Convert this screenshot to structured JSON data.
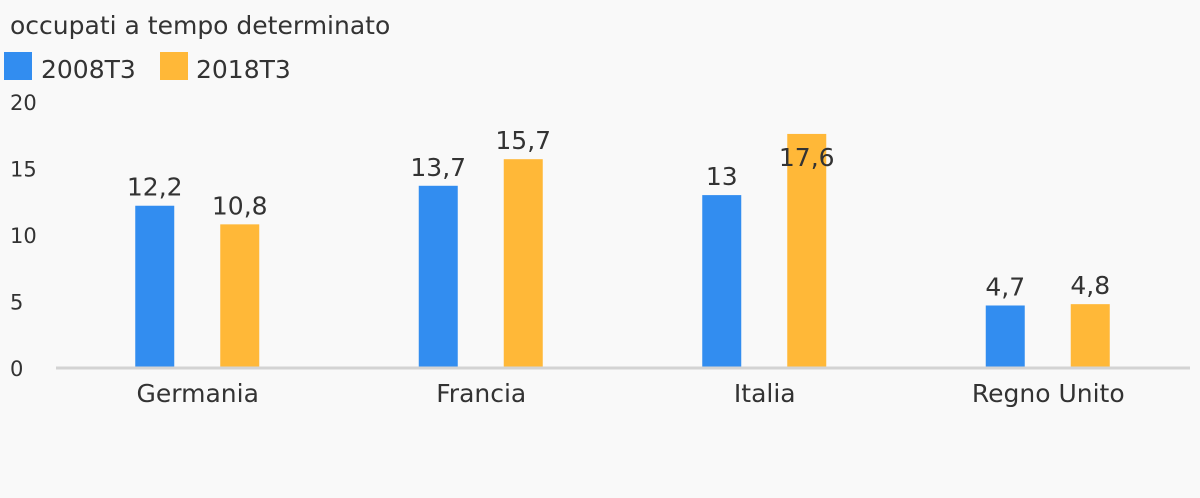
{
  "chart_data": {
    "type": "bar",
    "title": "occupati a tempo determinato",
    "categories": [
      "Germania",
      "Francia",
      "Italia",
      "Regno Unito"
    ],
    "series": [
      {
        "name": "2008T3",
        "color": "#328df0",
        "values": [
          12.2,
          13.7,
          13,
          4.7
        ],
        "labels": [
          "12,2",
          "13,7",
          "13",
          "4,7"
        ]
      },
      {
        "name": "2018T3",
        "color": "#ffb838",
        "values": [
          10.8,
          15.7,
          17.6,
          4.8
        ],
        "labels": [
          "10,8",
          "15,7",
          "17,6",
          "4,8"
        ]
      }
    ],
    "yticks": [
      "0",
      "5",
      "10",
      "15",
      "20"
    ],
    "ylim": [
      0,
      20
    ],
    "legend_position": "top-left",
    "grid": false,
    "axis_color": "#d3d3d3"
  }
}
